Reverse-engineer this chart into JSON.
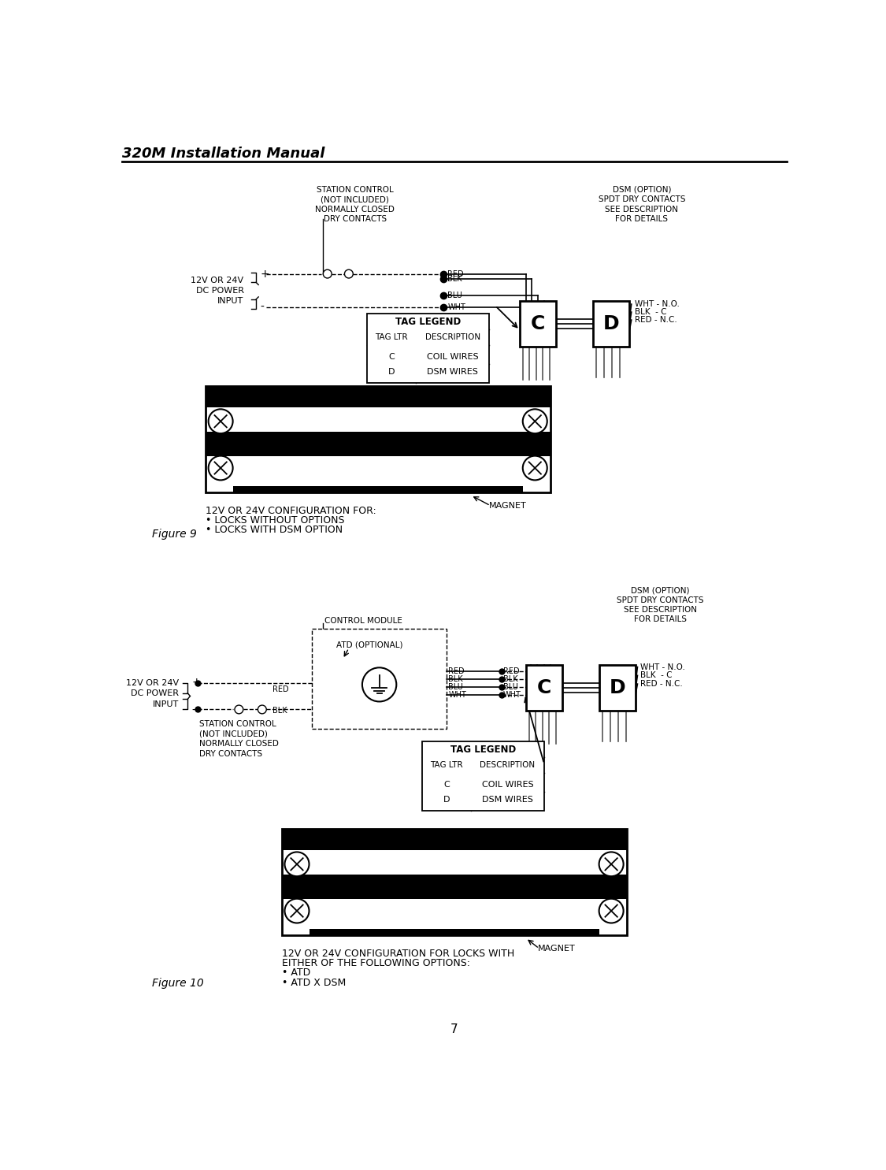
{
  "title": "320M Installation Manual",
  "page_number": "7",
  "background_color": "#ffffff",
  "fig1": {
    "label": "Figure 9",
    "caption_line1": "12V OR 24V CONFIGURATION FOR:",
    "caption_line2": "• LOCKS WITHOUT OPTIONS",
    "caption_line3": "• LOCKS WITH DSM OPTION",
    "station_control_label": "STATION CONTROL\n(NOT INCLUDED)\nNORMALLY CLOSED\nDRY CONTACTS",
    "power_label": "12V OR 24V\nDC POWER\nINPUT",
    "dsm_label": "DSM (OPTION)\nSPDT DRY CONTACTS\nSEE DESCRIPTION\nFOR DETAILS",
    "wires_C": [
      "RED",
      "BLK",
      "BLU",
      "WHT"
    ],
    "dsm_wires": [
      "WHT - N.O.",
      "BLK  - C",
      "RED - N.C."
    ],
    "tag_legend_rows": [
      [
        "C",
        "COIL WIRES"
      ],
      [
        "D",
        "DSM WIRES"
      ]
    ],
    "magnet_label": "MAGNET"
  },
  "fig2": {
    "label": "Figure 10",
    "caption_line1": "12V OR 24V CONFIGURATION FOR LOCKS WITH",
    "caption_line2": "EITHER OF THE FOLLOWING OPTIONS:",
    "caption_line3": "• ATD",
    "caption_line4": "• ATD X DSM",
    "control_module_label": "CONTROL MODULE",
    "atd_label": "ATD (OPTIONAL)",
    "station_control_label": "STATION CONTROL\n(NOT INCLUDED)\nNORMALLY CLOSED\nDRY CONTACTS",
    "power_label": "12V OR 24V\nDC POWER\nINPUT",
    "dsm_label": "DSM (OPTION)\nSPDT DRY CONTACTS\nSEE DESCRIPTION\nFOR DETAILS",
    "wires_in": [
      "RED",
      "BLK"
    ],
    "wires_out": [
      "RED",
      "BLK",
      "BLU",
      "WHT"
    ],
    "dsm_wires": [
      "WHT - N.O.",
      "BLK  - C",
      "RED - N.C."
    ],
    "tag_legend_rows": [
      [
        "C",
        "COIL WIRES"
      ],
      [
        "D",
        "DSM WIRES"
      ]
    ],
    "magnet_label": "MAGNET"
  }
}
